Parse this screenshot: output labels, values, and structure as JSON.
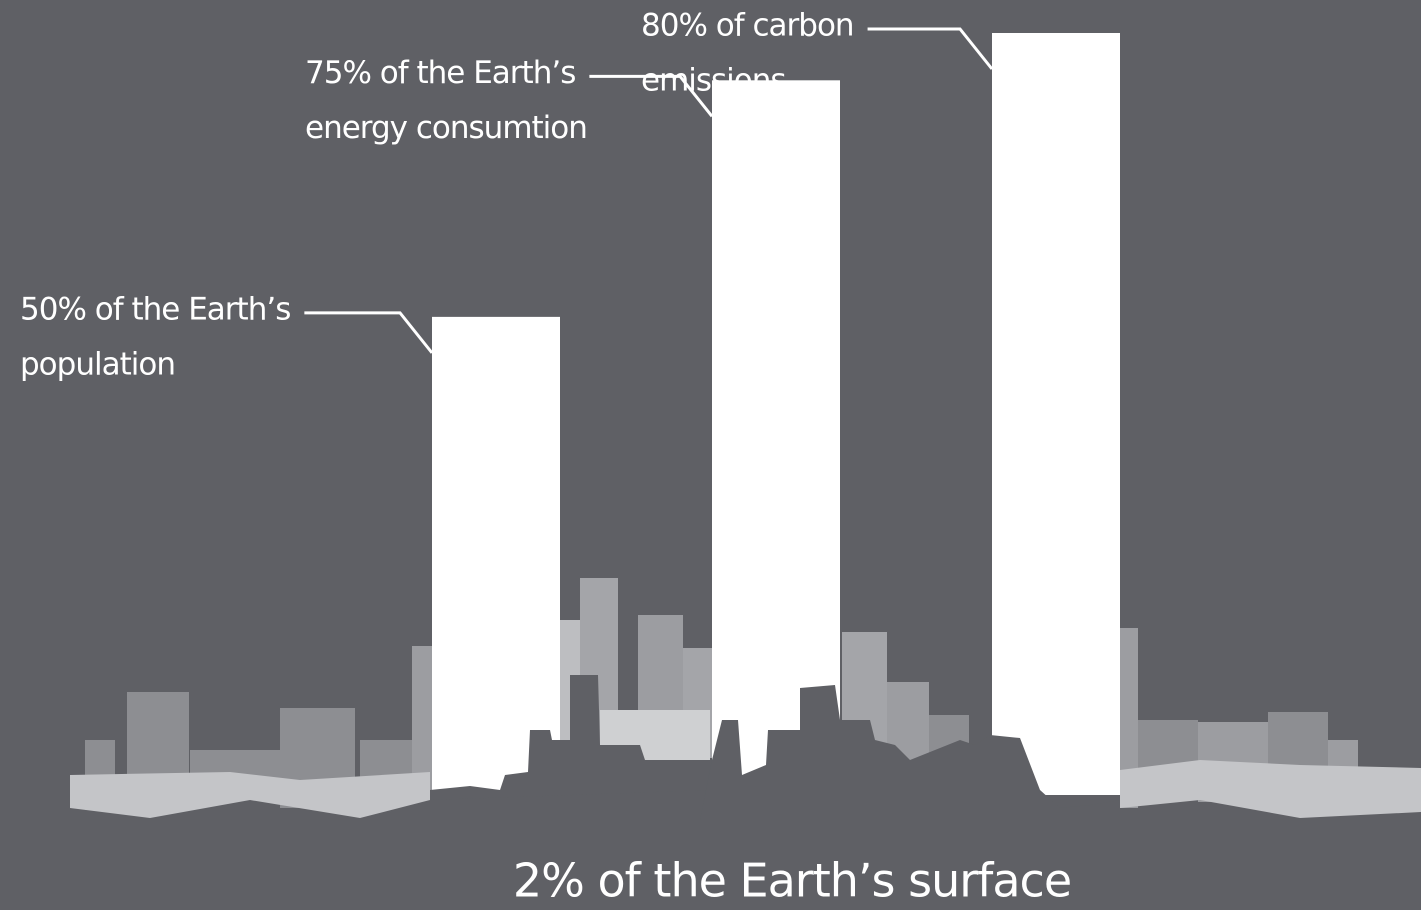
{
  "chart_data": {
    "type": "bar",
    "caption": "2% of the Earth’s surface",
    "categories": [
      [
        "50% of the Earth’s",
        "population"
      ],
      [
        "75% of the Earth’s",
        "energy consumtion"
      ],
      [
        "80% of carbon",
        "emissions"
      ]
    ],
    "values": [
      50,
      75,
      80
    ],
    "color": "#ffffff"
  }
}
